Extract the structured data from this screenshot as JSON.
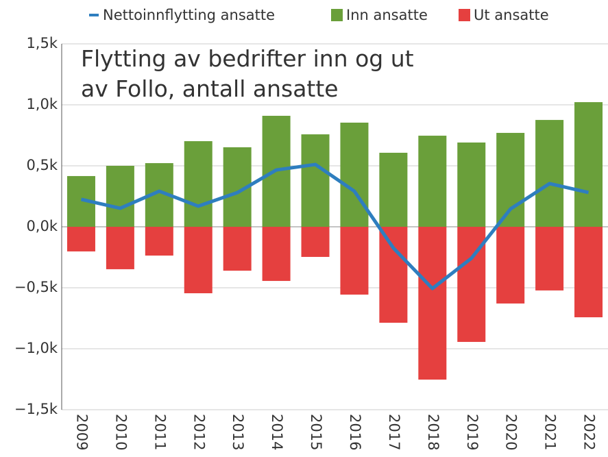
{
  "chart_data": {
    "type": "bar",
    "title": "Flytting av bedrifter inn og ut av Follo, antall ansatte",
    "categories": [
      "2009",
      "2010",
      "2011",
      "2012",
      "2013",
      "2014",
      "2015",
      "2016",
      "2017",
      "2018",
      "2019",
      "2020",
      "2021",
      "2022"
    ],
    "series": [
      {
        "name": "Nettoinnflytting ansatte",
        "type": "line",
        "color": "#2e7ebf",
        "values": [
          225,
          152,
          292,
          169,
          280,
          466,
          511,
          292,
          -174,
          -506,
          -258,
          146,
          354,
          281
        ]
      },
      {
        "name": "Inn ansatte",
        "type": "bar",
        "color": "#6a9f3a",
        "values": [
          416,
          500,
          522,
          702,
          652,
          910,
          758,
          854,
          607,
          747,
          691,
          770,
          876,
          1022
        ]
      },
      {
        "name": "Ut ansatte",
        "type": "bar",
        "color": "#e5403f",
        "values": [
          -202,
          -348,
          -236,
          -545,
          -360,
          -444,
          -247,
          -556,
          -787,
          -1253,
          -944,
          -629,
          -522,
          -742
        ]
      }
    ],
    "ylim": [
      -1500,
      1500
    ],
    "yticks": [
      {
        "value": -1500,
        "label": "−1,5k"
      },
      {
        "value": -1000,
        "label": "−1,0k"
      },
      {
        "value": -500,
        "label": "−0,5k"
      },
      {
        "value": 0,
        "label": "0,0k"
      },
      {
        "value": 500,
        "label": "0,5k"
      },
      {
        "value": 1000,
        "label": "1,0k"
      },
      {
        "value": 1500,
        "label": "1,5k"
      }
    ],
    "grid": true,
    "legend": "top"
  }
}
